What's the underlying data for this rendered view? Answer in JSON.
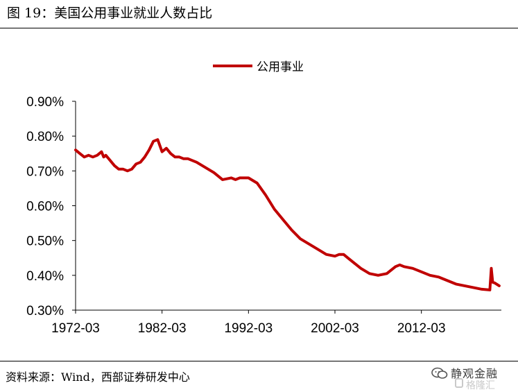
{
  "figure": {
    "title": "图 19：美国公用事业就业人数占比",
    "source": "资料来源：Wind，西部证券研发中心"
  },
  "watermark": {
    "text": "静观金融",
    "subtext": "格隆汇"
  },
  "chart_data": {
    "type": "line",
    "title": "",
    "xlabel": "",
    "ylabel": "",
    "grid": false,
    "legend_position": "top-center",
    "xlim": [
      "1972-03",
      "2021-06"
    ],
    "ylim": [
      0.3,
      0.9
    ],
    "y_ticks": [
      "0.30%",
      "0.40%",
      "0.50%",
      "0.60%",
      "0.70%",
      "0.80%",
      "0.90%"
    ],
    "x_ticks": [
      "1972-03",
      "1982-03",
      "1992-03",
      "2002-03",
      "2012-03"
    ],
    "series": [
      {
        "name": "公用事业",
        "color": "#c00000",
        "x": [
          "1972-03",
          "1972-09",
          "1973-03",
          "1973-09",
          "1974-03",
          "1974-09",
          "1975-03",
          "1975-06",
          "1975-09",
          "1976-03",
          "1976-09",
          "1977-03",
          "1977-09",
          "1978-03",
          "1978-09",
          "1979-03",
          "1979-09",
          "1980-03",
          "1980-09",
          "1981-03",
          "1981-09",
          "1982-03",
          "1982-09",
          "1983-03",
          "1983-09",
          "1984-03",
          "1984-09",
          "1985-03",
          "1986-03",
          "1987-03",
          "1988-03",
          "1989-03",
          "1990-03",
          "1990-09",
          "1991-03",
          "1992-03",
          "1993-03",
          "1994-03",
          "1995-03",
          "1996-03",
          "1997-03",
          "1998-03",
          "1999-03",
          "2000-03",
          "2001-03",
          "2002-03",
          "2002-09",
          "2003-03",
          "2003-09",
          "2004-03",
          "2005-03",
          "2006-03",
          "2007-03",
          "2008-03",
          "2009-03",
          "2009-09",
          "2010-03",
          "2011-03",
          "2012-03",
          "2013-03",
          "2014-03",
          "2015-03",
          "2016-03",
          "2017-03",
          "2018-03",
          "2019-03",
          "2020-02",
          "2020-04",
          "2020-06",
          "2020-09",
          "2021-03"
        ],
        "values": [
          0.76,
          0.75,
          0.74,
          0.745,
          0.74,
          0.745,
          0.755,
          0.74,
          0.745,
          0.73,
          0.715,
          0.705,
          0.705,
          0.7,
          0.705,
          0.72,
          0.725,
          0.74,
          0.76,
          0.785,
          0.79,
          0.755,
          0.765,
          0.75,
          0.74,
          0.74,
          0.735,
          0.735,
          0.725,
          0.71,
          0.695,
          0.675,
          0.68,
          0.675,
          0.68,
          0.68,
          0.665,
          0.63,
          0.59,
          0.56,
          0.53,
          0.505,
          0.49,
          0.475,
          0.46,
          0.455,
          0.46,
          0.46,
          0.45,
          0.44,
          0.42,
          0.405,
          0.4,
          0.405,
          0.425,
          0.43,
          0.425,
          0.42,
          0.41,
          0.4,
          0.395,
          0.385,
          0.375,
          0.37,
          0.365,
          0.36,
          0.358,
          0.42,
          0.38,
          0.378,
          0.37
        ]
      }
    ]
  }
}
